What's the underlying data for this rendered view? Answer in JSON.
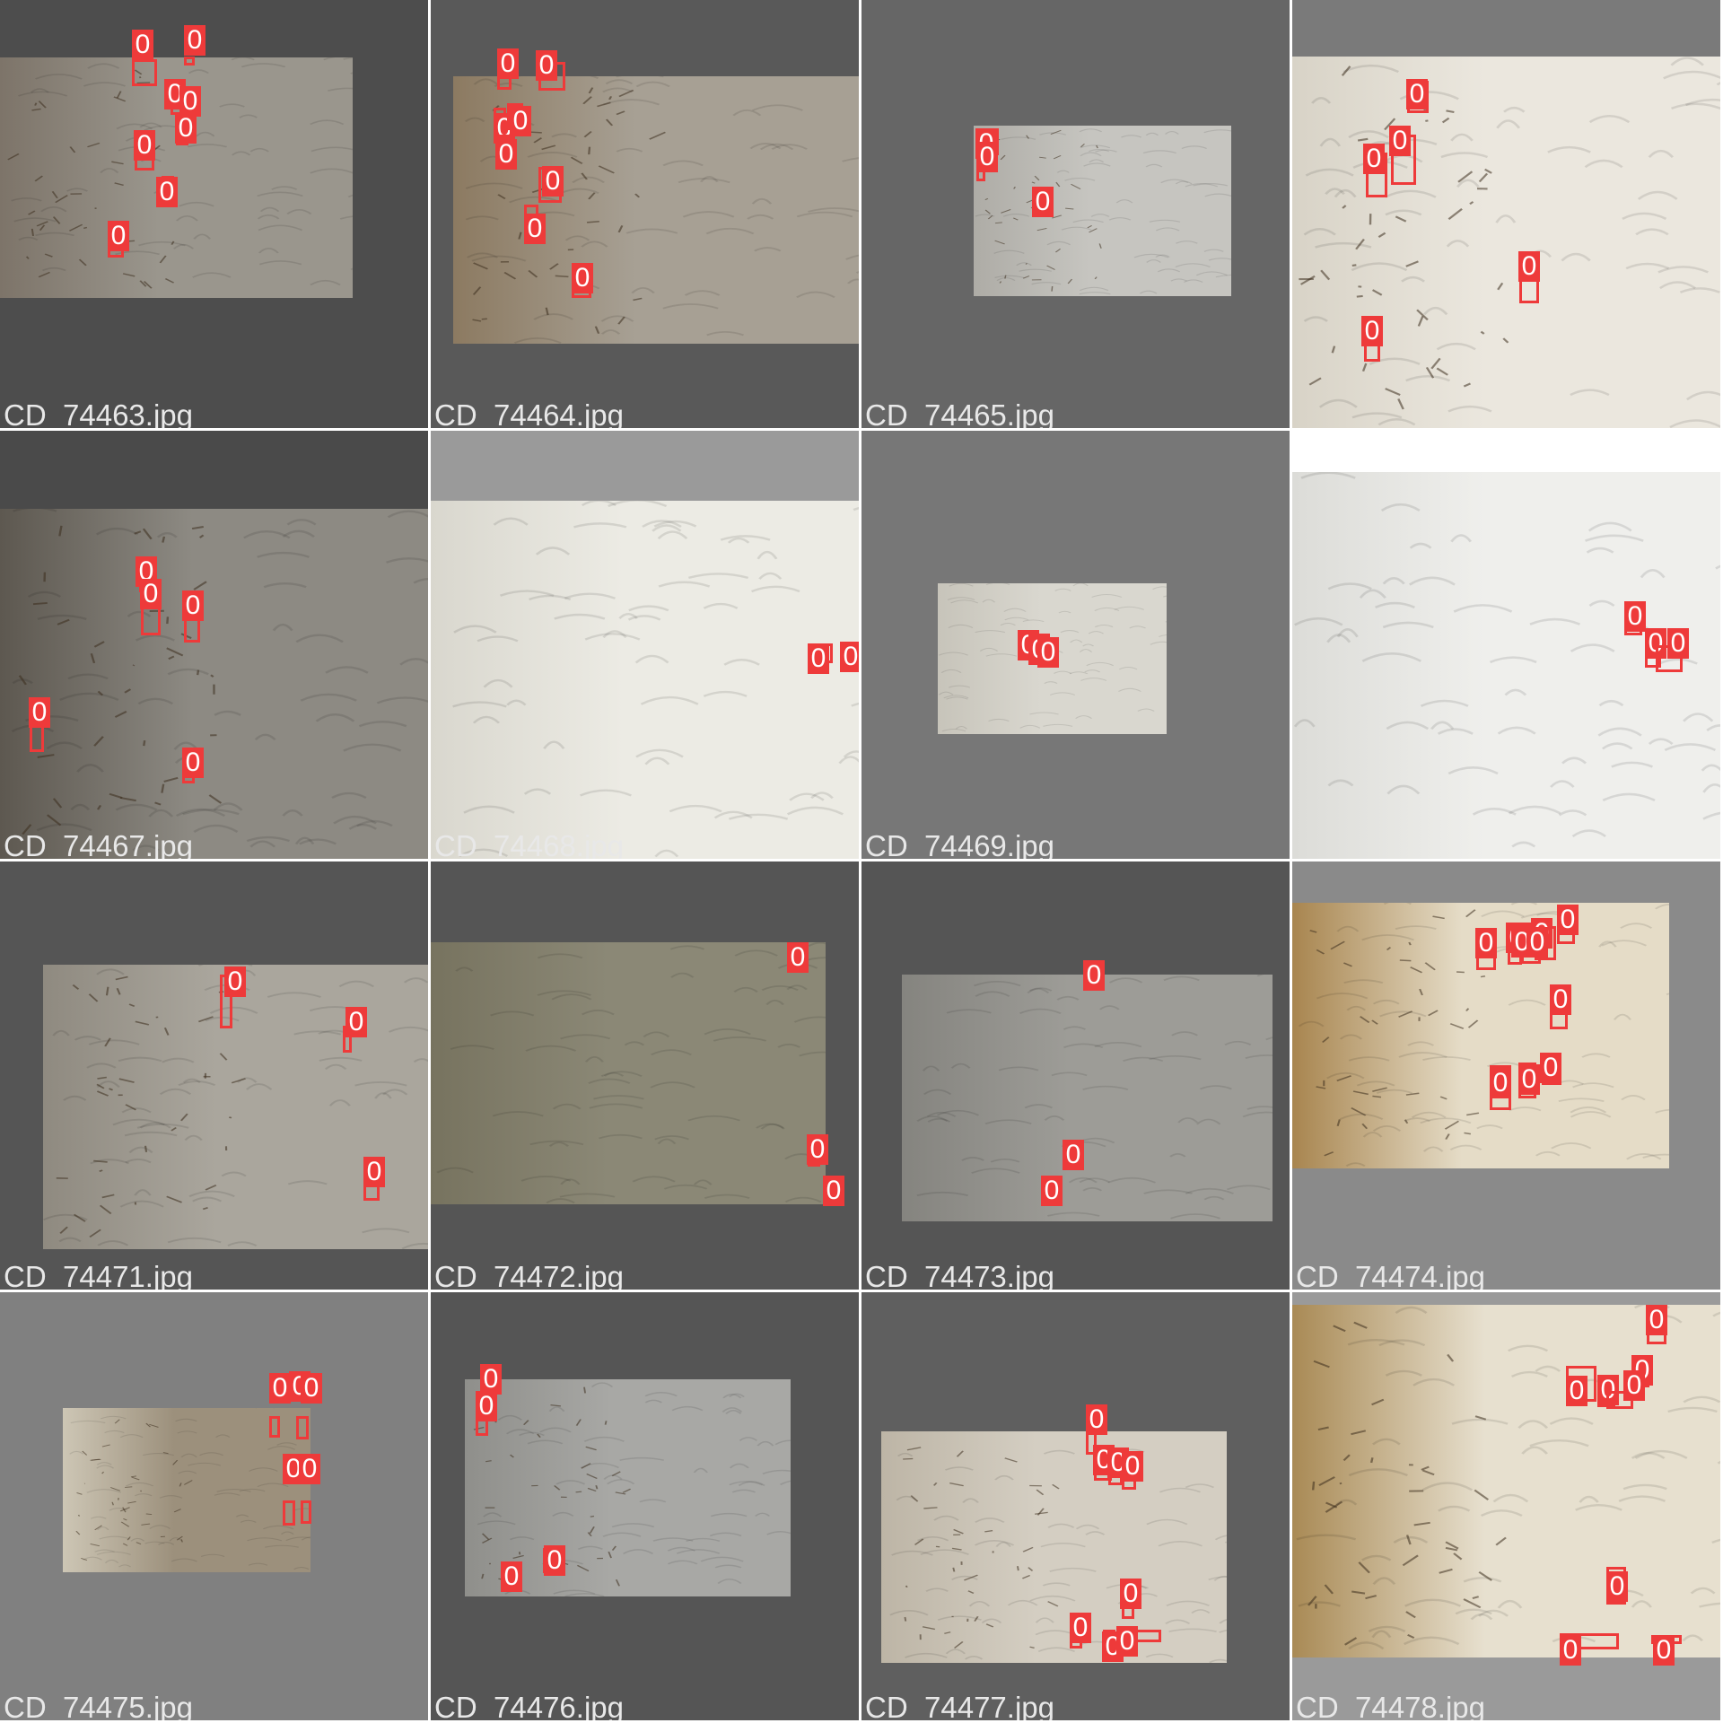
{
  "colors": {
    "detection": "#ee3a3a",
    "label_text": "#ffffff",
    "filename_text": "#e8e8e8"
  },
  "tiles": [
    {
      "filename": "CD_74463.jpg",
      "background": "#4d4d4d",
      "photo_tone": [
        "#9a968d",
        "#7d7469"
      ],
      "has_debris": true,
      "detections": [
        "0",
        "0",
        "0",
        "0",
        "0",
        "0",
        "0",
        "0"
      ]
    },
    {
      "filename": "CD_74467.jpg",
      "background": "#4a4a4a",
      "photo_tone": [
        "#8d8a83",
        "#5d5850"
      ],
      "has_debris": true,
      "detections": [
        "0",
        "0",
        "0",
        "0",
        "0"
      ]
    },
    {
      "filename": "CD_74471.jpg",
      "background": "#555555",
      "photo_tone": [
        "#aaa69d",
        "#8f8a80"
      ],
      "has_debris": true,
      "detections": [
        "0",
        "0",
        "0"
      ]
    },
    {
      "filename": "CD_74475.jpg",
      "background": "#808080",
      "photo_tone": [
        "#9c907c",
        "#cdc6b5"
      ],
      "has_debris": true,
      "detections": [
        "0",
        "0",
        "0",
        "0",
        "0"
      ]
    },
    {
      "filename": "CD_74464.jpg",
      "background": "#595959",
      "photo_tone": [
        "#a7a094",
        "#8c7a61"
      ],
      "has_debris": true,
      "detections": [
        "0",
        "0",
        "0",
        "0",
        "0",
        "0",
        "0",
        "0"
      ]
    },
    {
      "filename": "CD_74468.jpg",
      "background": "#9a9a9a",
      "photo_tone": [
        "#ecebe4",
        "#d9d7ce"
      ],
      "has_debris": false,
      "detections": [
        "0",
        "0"
      ]
    },
    {
      "filename": "CD_74472.jpg",
      "background": "#555555",
      "photo_tone": [
        "#8b8876",
        "#77735f"
      ],
      "has_debris": false,
      "detections": [
        "0",
        "0",
        "0"
      ]
    },
    {
      "filename": "CD_74476.jpg",
      "background": "#555555",
      "photo_tone": [
        "#a8a8a5",
        "#8f8f8b"
      ],
      "has_debris": true,
      "detections": [
        "0",
        "0",
        "0",
        "0"
      ]
    },
    {
      "filename": "CD_74465.jpg",
      "background": "#666666",
      "photo_tone": [
        "#c6c5c0",
        "#aeaca6"
      ],
      "has_debris": true,
      "detections": [
        "0",
        "0",
        "0"
      ]
    },
    {
      "filename": "CD_74469.jpg",
      "background": "#777777",
      "photo_tone": [
        "#d9d7cf",
        "#c7c4ba"
      ],
      "has_debris": false,
      "detections": [
        "0",
        "0",
        "0"
      ]
    },
    {
      "filename": "CD_74473.jpg",
      "background": "#555555",
      "photo_tone": [
        "#9d9c97",
        "#85847f"
      ],
      "has_debris": false,
      "detections": [
        "0",
        "0",
        "0"
      ]
    },
    {
      "filename": "CD_74477.jpg",
      "background": "#5f5f5f",
      "photo_tone": [
        "#d4cec2",
        "#bdb5a6"
      ],
      "has_debris": true,
      "detections": [
        "0",
        "0",
        "0",
        "0",
        "0",
        "0",
        "0",
        "0"
      ]
    },
    {
      "filename": "",
      "background": "#7a7a7a",
      "photo_tone": [
        "#ebe7de",
        "#d8d3c7"
      ],
      "has_debris": true,
      "detections": [
        "0",
        "0",
        "0",
        "0",
        "0"
      ]
    },
    {
      "filename": "",
      "background": "#ffffff",
      "photo_tone": [
        "#efefec",
        "#dcdcd8"
      ],
      "has_debris": false,
      "detections": [
        "0",
        "0",
        "0"
      ]
    },
    {
      "filename": "CD_74474.jpg",
      "background": "#8a8a8a",
      "photo_tone": [
        "#e5dcc7",
        "#a8854f"
      ],
      "has_debris": true,
      "detections": [
        "0",
        "0",
        "0",
        "0",
        "0",
        "0",
        "0",
        "0",
        "0",
        "0",
        "0"
      ]
    },
    {
      "filename": "CD_74478.jpg",
      "background": "#9a9a9a",
      "photo_tone": [
        "#e7e0cf",
        "#a98a55"
      ],
      "has_debris": true,
      "detections": [
        "0",
        "0",
        "0",
        "0",
        "0",
        "0",
        "0",
        "0",
        "0"
      ]
    }
  ]
}
